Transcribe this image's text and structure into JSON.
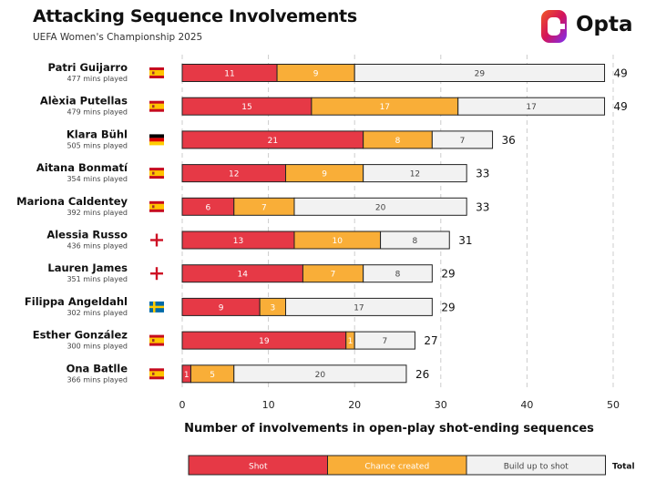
{
  "header": {
    "title": "Attacking Sequence Involvements",
    "subtitle": "UEFA Women's Championship 2025",
    "logo_text": "Opta"
  },
  "colors": {
    "shot": "#e63946",
    "chance": "#f9ae38",
    "buildup": "#f2f2f2",
    "outline": "#222222",
    "grid": "#cccccc"
  },
  "chart_data": {
    "type": "bar",
    "orientation": "horizontal",
    "stacked": true,
    "title": "Attacking Sequence Involvements",
    "subtitle": "UEFA Women's Championship 2025",
    "xlabel": "Number of involvements in open-play shot-ending sequences",
    "ylabel": "",
    "xlim": [
      0,
      50
    ],
    "xticks": [
      0,
      10,
      20,
      30,
      40,
      50
    ],
    "grid": "vertical dashed",
    "legend": {
      "position": "bottom",
      "items": [
        "Shot",
        "Chance created",
        "Build up to shot"
      ],
      "total_label": "Total"
    },
    "players": [
      {
        "name": "Patri Guijarro",
        "mins": "477 mins played",
        "flag": "spain"
      },
      {
        "name": "Alèxia Putellas",
        "mins": "479 mins played",
        "flag": "spain"
      },
      {
        "name": "Klara Bühl",
        "mins": "505 mins played",
        "flag": "germany"
      },
      {
        "name": "Aitana Bonmatí",
        "mins": "354 mins played",
        "flag": "spain"
      },
      {
        "name": "Mariona Caldentey",
        "mins": "392 mins played",
        "flag": "spain"
      },
      {
        "name": "Alessia Russo",
        "mins": "436 mins played",
        "flag": "england"
      },
      {
        "name": "Lauren James",
        "mins": "351 mins played",
        "flag": "england"
      },
      {
        "name": "Filippa Angeldahl",
        "mins": "302 mins played",
        "flag": "sweden"
      },
      {
        "name": "Esther González",
        "mins": "300 mins played",
        "flag": "spain"
      },
      {
        "name": "Ona Batlle",
        "mins": "366 mins played",
        "flag": "spain"
      }
    ],
    "series": [
      {
        "name": "Shot",
        "values": [
          11,
          15,
          21,
          12,
          6,
          13,
          14,
          9,
          19,
          1
        ]
      },
      {
        "name": "Chance created",
        "values": [
          9,
          17,
          8,
          9,
          7,
          10,
          7,
          3,
          1,
          5
        ]
      },
      {
        "name": "Build up to shot",
        "values": [
          29,
          17,
          7,
          12,
          20,
          8,
          8,
          17,
          7,
          20
        ]
      }
    ],
    "totals": [
      49,
      49,
      36,
      33,
      33,
      31,
      29,
      29,
      27,
      26
    ]
  }
}
